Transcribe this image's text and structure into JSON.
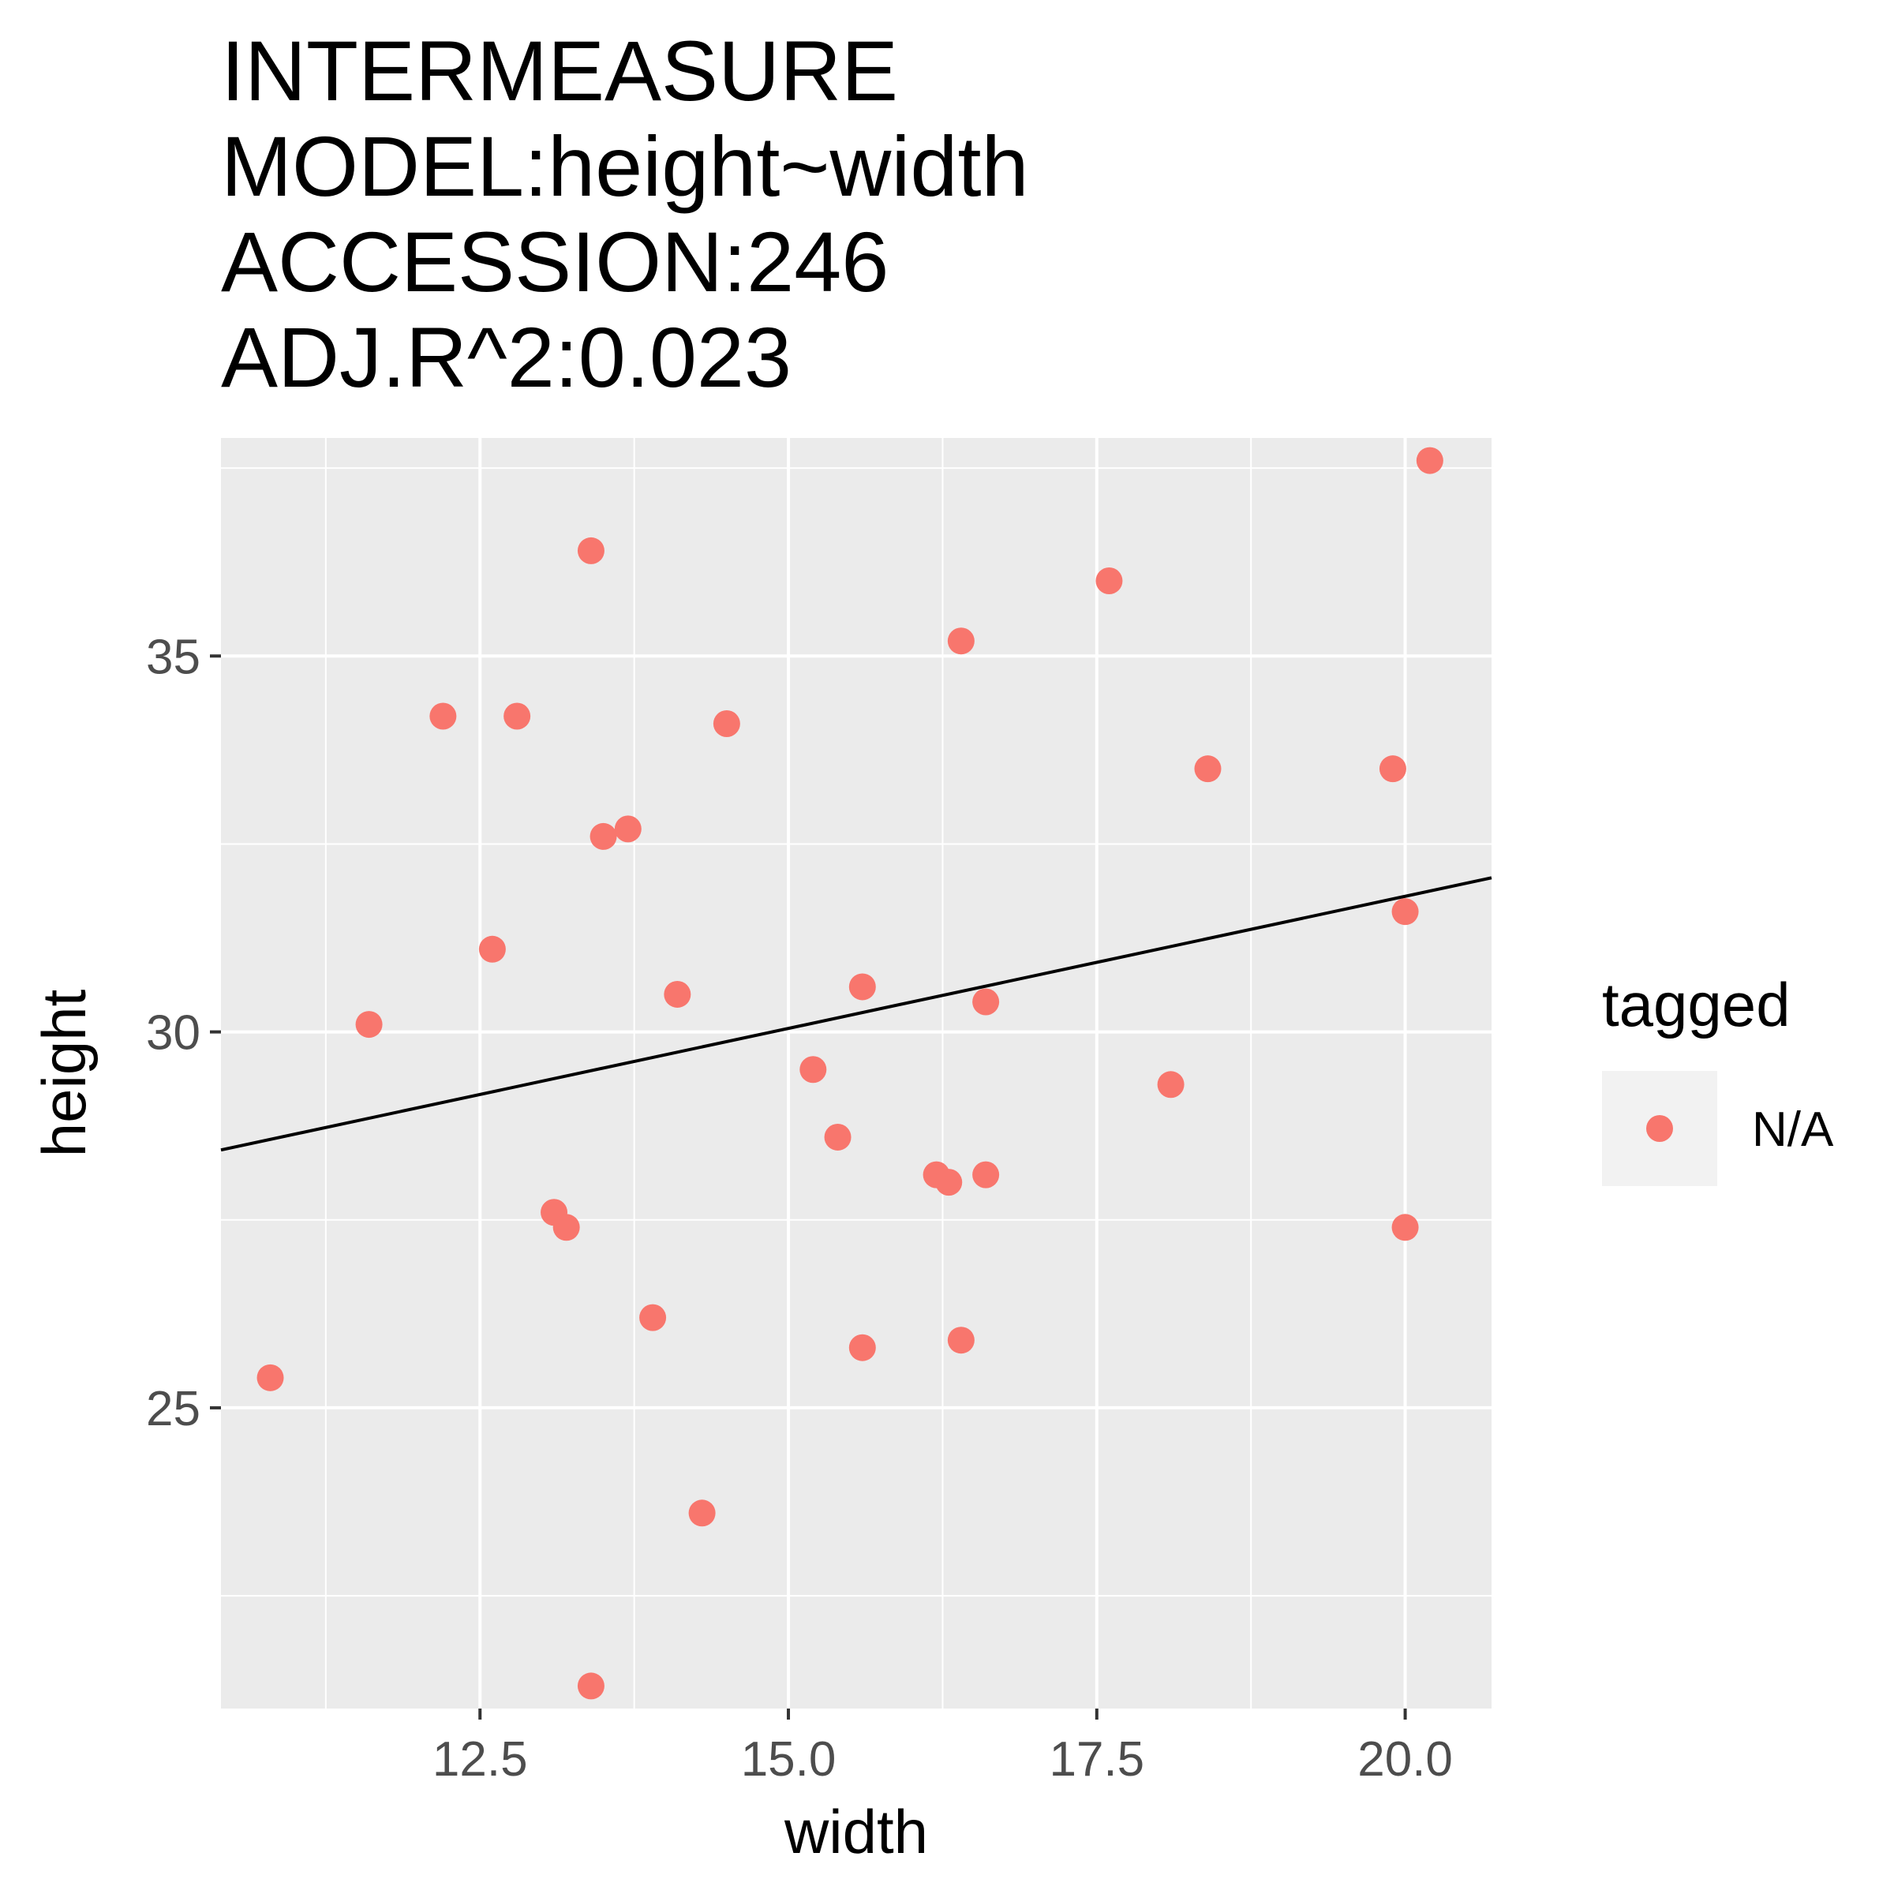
{
  "chart_data": {
    "type": "scatter",
    "title_lines": [
      "INTERMEASURE",
      "MODEL:height~width",
      "ACCESSION:246",
      "ADJ.R^2:0.023"
    ],
    "xlabel": "width",
    "ylabel": "height",
    "xlim": [
      10.4,
      20.7
    ],
    "ylim": [
      21.0,
      37.9
    ],
    "x_ticks": [
      12.5,
      15.0,
      17.5,
      20.0
    ],
    "x_tick_labels": [
      "12.5",
      "15.0",
      "17.5",
      "20.0"
    ],
    "y_ticks": [
      25,
      30,
      35
    ],
    "y_tick_labels": [
      "25",
      "30",
      "35"
    ],
    "x_minor": [
      11.25,
      13.75,
      16.25,
      18.75
    ],
    "y_minor": [
      22.5,
      27.5,
      32.5,
      37.5
    ],
    "grid": true,
    "legend": {
      "title": "tagged",
      "placement": "right",
      "entries": [
        {
          "label": "N/A",
          "color": "#F8766D"
        }
      ]
    },
    "series": [
      {
        "color": "#F8766D",
        "points": [
          [
            10.8,
            25.4
          ],
          [
            11.6,
            30.1
          ],
          [
            12.2,
            34.2
          ],
          [
            12.6,
            31.1
          ],
          [
            12.8,
            34.2
          ],
          [
            13.1,
            27.6
          ],
          [
            13.2,
            27.4
          ],
          [
            13.4,
            36.4
          ],
          [
            13.4,
            21.3
          ],
          [
            13.5,
            32.6
          ],
          [
            13.7,
            32.7
          ],
          [
            13.9,
            26.2
          ],
          [
            14.1,
            30.5
          ],
          [
            14.3,
            23.6
          ],
          [
            14.5,
            34.1
          ],
          [
            15.2,
            29.5
          ],
          [
            15.4,
            28.6
          ],
          [
            15.6,
            30.6
          ],
          [
            15.6,
            25.8
          ],
          [
            16.2,
            28.1
          ],
          [
            16.3,
            28.0
          ],
          [
            16.4,
            35.2
          ],
          [
            16.4,
            25.9
          ],
          [
            16.6,
            30.4
          ],
          [
            16.6,
            28.1
          ],
          [
            17.6,
            36.0
          ],
          [
            18.1,
            29.3
          ],
          [
            18.4,
            33.5
          ],
          [
            19.9,
            33.5
          ],
          [
            20.0,
            31.6
          ],
          [
            20.0,
            27.4
          ],
          [
            20.2,
            37.6
          ]
        ]
      }
    ],
    "trend_line": {
      "color": "#000000",
      "x": [
        10.4,
        20.7
      ],
      "y": [
        28.43,
        32.05
      ]
    }
  }
}
